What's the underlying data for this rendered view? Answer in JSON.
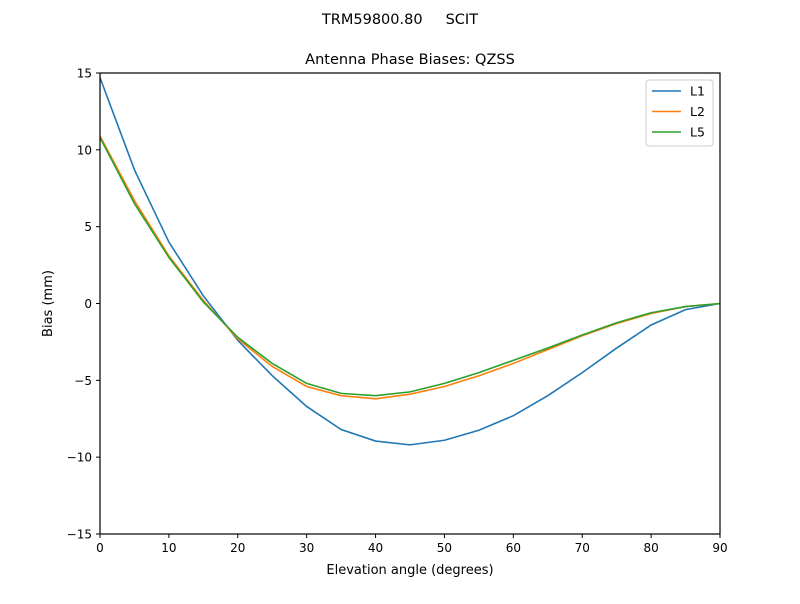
{
  "chart_data": {
    "type": "line",
    "suptitle": "TRM59800.80     SCIT",
    "title": "Antenna Phase Biases: QZSS",
    "xlabel": "Elevation angle (degrees)",
    "ylabel": "Bias (mm)",
    "xlim": [
      0,
      90
    ],
    "ylim": [
      -15,
      15
    ],
    "xticks": [
      0,
      10,
      20,
      30,
      40,
      50,
      60,
      70,
      80,
      90
    ],
    "yticks": [
      -15,
      -10,
      -5,
      0,
      5,
      10,
      15
    ],
    "ytick_labels": [
      "−15",
      "−10",
      "−5",
      "0",
      "5",
      "10",
      "15"
    ],
    "grid": false,
    "legend_position": "top-right",
    "x": [
      0,
      5,
      10,
      15,
      20,
      25,
      30,
      35,
      40,
      45,
      50,
      55,
      60,
      65,
      70,
      75,
      80,
      85,
      90
    ],
    "series": [
      {
        "name": "L1",
        "color": "#1f77b4",
        "values": [
          14.7,
          8.7,
          4.0,
          0.5,
          -2.4,
          -4.7,
          -6.7,
          -8.2,
          -8.95,
          -9.2,
          -8.9,
          -8.25,
          -7.3,
          -6.0,
          -4.5,
          -2.9,
          -1.4,
          -0.4,
          0.0
        ]
      },
      {
        "name": "L2",
        "color": "#ff7f0e",
        "values": [
          10.9,
          6.7,
          3.1,
          0.2,
          -2.3,
          -4.1,
          -5.4,
          -6.0,
          -6.2,
          -5.9,
          -5.4,
          -4.7,
          -3.9,
          -3.0,
          -2.1,
          -1.3,
          -0.65,
          -0.2,
          0.0
        ]
      },
      {
        "name": "L5",
        "color": "#2ca02c",
        "values": [
          10.8,
          6.5,
          3.0,
          0.1,
          -2.2,
          -3.9,
          -5.2,
          -5.85,
          -6.0,
          -5.75,
          -5.2,
          -4.5,
          -3.7,
          -2.9,
          -2.05,
          -1.25,
          -0.6,
          -0.2,
          0.0
        ]
      }
    ]
  }
}
